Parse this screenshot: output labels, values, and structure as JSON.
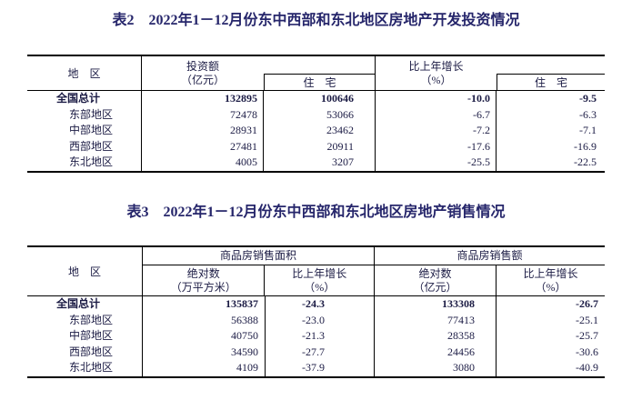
{
  "page": {
    "background": "#ffffff",
    "title_color": "#26266b",
    "text_color": "#1b1b44",
    "border_color": "#000000"
  },
  "table2": {
    "title": "表2　2022年1－12月份东中西部和东北地区房地产开发投资情况",
    "header": {
      "region": "地　区",
      "investment_label": "投资额",
      "investment_unit": "（亿元）",
      "residential_label": "住　宅",
      "growth_label": "比上年增长",
      "growth_unit": "（%）",
      "residential_growth_label": "住　宅"
    },
    "rows": [
      {
        "region": "全国总计",
        "investment": "132895",
        "res_investment": "100646",
        "growth": "-10.0",
        "res_growth": "-9.5"
      },
      {
        "region": "东部地区",
        "investment": "72478",
        "res_investment": "53066",
        "growth": "-6.7",
        "res_growth": "-6.3"
      },
      {
        "region": "中部地区",
        "investment": "28931",
        "res_investment": "23462",
        "growth": "-7.2",
        "res_growth": "-7.1"
      },
      {
        "region": "西部地区",
        "investment": "27481",
        "res_investment": "20911",
        "growth": "-17.6",
        "res_growth": "-16.9"
      },
      {
        "region": "东北地区",
        "investment": "4005",
        "res_investment": "3207",
        "growth": "-25.5",
        "res_growth": "-22.5"
      }
    ]
  },
  "table3": {
    "title": "表3　2022年1－12月份东中西部和东北地区房地产销售情况",
    "header": {
      "region": "地　区",
      "group_area": "商品房销售面积",
      "group_amount": "商品房销售额",
      "abs_label": "绝对数",
      "area_unit": "（万平方米）",
      "growth_label": "比上年增长",
      "growth_unit": "（%）",
      "abs_label2": "绝对数",
      "amount_unit": "（亿元）",
      "growth_label2": "比上年增长",
      "growth_unit2": "（%）"
    },
    "rows": [
      {
        "region": "全国总计",
        "area": "135837",
        "area_growth": "-24.3",
        "amount": "133308",
        "amount_growth": "-26.7"
      },
      {
        "region": "东部地区",
        "area": "56388",
        "area_growth": "-23.0",
        "amount": "77413",
        "amount_growth": "-25.1"
      },
      {
        "region": "中部地区",
        "area": "40750",
        "area_growth": "-21.3",
        "amount": "28358",
        "amount_growth": "-25.7"
      },
      {
        "region": "西部地区",
        "area": "34590",
        "area_growth": "-27.7",
        "amount": "24456",
        "amount_growth": "-30.6"
      },
      {
        "region": "东北地区",
        "area": "4109",
        "area_growth": "-37.9",
        "amount": "3080",
        "amount_growth": "-40.9"
      }
    ]
  },
  "chart_data": [
    {
      "type": "table",
      "title": "表2 2022年1－12月份东中西部和东北地区房地产开发投资情况",
      "columns": [
        "地区",
        "投资额（亿元）",
        "住宅",
        "比上年增长（%）",
        "住宅"
      ],
      "rows": [
        [
          "全国总计",
          132895,
          100646,
          -10.0,
          -9.5
        ],
        [
          "东部地区",
          72478,
          53066,
          -6.7,
          -6.3
        ],
        [
          "中部地区",
          28931,
          23462,
          -7.2,
          -7.1
        ],
        [
          "西部地区",
          27481,
          20911,
          -17.6,
          -16.9
        ],
        [
          "东北地区",
          4005,
          3207,
          -25.5,
          -22.5
        ]
      ]
    },
    {
      "type": "table",
      "title": "表3 2022年1－12月份东中西部和东北地区房地产销售情况",
      "columns": [
        "地区",
        "商品房销售面积 绝对数（万平方米）",
        "商品房销售面积 比上年增长（%）",
        "商品房销售额 绝对数（亿元）",
        "商品房销售额 比上年增长（%）"
      ],
      "rows": [
        [
          "全国总计",
          135837,
          -24.3,
          133308,
          -26.7
        ],
        [
          "东部地区",
          56388,
          -23.0,
          77413,
          -25.1
        ],
        [
          "中部地区",
          40750,
          -21.3,
          28358,
          -25.7
        ],
        [
          "西部地区",
          34590,
          -27.7,
          24456,
          -30.6
        ],
        [
          "东北地区",
          4109,
          -37.9,
          3080,
          -40.9
        ]
      ]
    }
  ]
}
